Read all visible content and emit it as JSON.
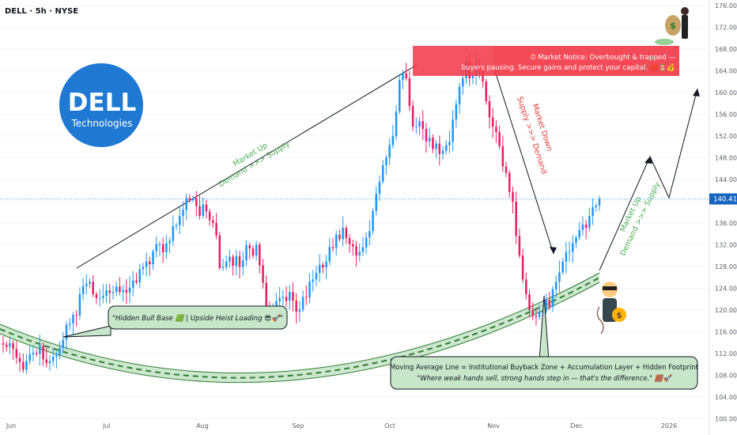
{
  "header": {
    "ticker": "DELL · 5h · NYSE"
  },
  "logo": {
    "line1": "DELL",
    "line2": "Technologies",
    "bg_color": "#1f78d1"
  },
  "price_badge": {
    "value": "140.41",
    "bg_color": "#1565c0"
  },
  "colors": {
    "up": "#2196f3",
    "down": "#e91e63",
    "supply_zone": "#f23645",
    "ma_band": "#a5d6a7",
    "ma_dash": "#2e7d32",
    "label_green": "#4caf50",
    "label_red": "#e53935"
  },
  "annotations": {
    "bull_base": "\"Hidden Bull Base 🟩 | Upside Heist Loading 😎🚀\"",
    "market_notice_1": "⏱ Market Notice: Overbought & trapped —",
    "market_notice_2": "buyers pausing. Secure gains and protect your capital. 🟥⏳💰",
    "ma_line_1": "Moving Average Line = Institutional Buyback Zone + Accumulation Layer + Hidden Footprint",
    "ma_line_2": "\"Where weak hands sell, strong hands step in — that's the difference.\" 🟫🚀",
    "market_up_1_a": "Market Up",
    "market_up_1_b": "Demand >>> Supply",
    "market_down_a": "Market Down",
    "market_down_b": "Supply >>> Demand",
    "market_up_2_a": "Market Up",
    "market_up_2_b": "Demand >>> Supply"
  },
  "chart_data": {
    "type": "candlestick",
    "x_axis": {
      "ticks": [
        "Jun",
        "Jul",
        "Aug",
        "Sep",
        "Oct",
        "Nov",
        "Dec",
        "2026"
      ]
    },
    "y_axis": {
      "range": [
        97,
        177
      ],
      "ticks": [
        100,
        104,
        108,
        112,
        116,
        120,
        124,
        128,
        132,
        136,
        140,
        144,
        148,
        152,
        156,
        160,
        164,
        168,
        172,
        176
      ]
    },
    "last_price": 140.41,
    "closes": [
      113.6,
      113.2,
      113.9,
      112.8,
      111.2,
      110.4,
      109.0,
      110.6,
      111.8,
      112.1,
      111.9,
      113.4,
      110.9,
      110.2,
      110.6,
      111.4,
      111.7,
      113.0,
      114.5,
      117.3,
      117.5,
      119.1,
      119.0,
      122.9,
      124.4,
      124.8,
      125.2,
      122.9,
      122.2,
      122.2,
      122.6,
      123.6,
      123.1,
      123.3,
      124.3,
      123.3,
      123.7,
      123.2,
      124.1,
      125.4,
      125.1,
      127.5,
      127.9,
      128.9,
      128.4,
      130.8,
      132.1,
      132.1,
      130.6,
      132.3,
      132.7,
      135.4,
      135.6,
      137.3,
      138.4,
      140.6,
      140.2,
      140.5,
      139.1,
      137.3,
      139.4,
      138.1,
      136.5,
      136.0,
      133.7,
      127.7,
      127.9,
      128.9,
      129.8,
      128.1,
      129.9,
      127.9,
      129.1,
      131.9,
      131.3,
      130.0,
      132.0,
      128.2,
      125.0,
      120.2,
      118.6,
      120.6,
      121.6,
      122.2,
      122.4,
      121.7,
      123.3,
      121.7,
      119.7,
      120.1,
      122.4,
      122.3,
      125.2,
      125.6,
      126.8,
      128.3,
      127.8,
      128.9,
      131.6,
      131.4,
      133.8,
      133.0,
      135.1,
      133.2,
      132.1,
      131.7,
      130.0,
      130.7,
      131.5,
      133.3,
      134.5,
      138.2,
      141.4,
      143.6,
      146.6,
      148.0,
      150.3,
      152.0,
      156.5,
      162.3,
      163.5,
      162.6,
      157.5,
      153.7,
      153.7,
      154.7,
      153.3,
      151.0,
      151.7,
      149.6,
      150.6,
      148.7,
      149.3,
      150.3,
      150.9,
      155.0,
      157.8,
      161.1,
      162.6,
      165.6,
      162.6,
      163.1,
      165.1,
      163.9,
      162.0,
      158.4,
      155.4,
      153.7,
      152.7,
      150.1,
      146.4,
      145.2,
      141.7,
      139.9,
      133.6,
      130.0,
      125.6,
      122.9,
      120.0,
      118.9,
      118.7,
      119.7,
      119.7,
      121.8,
      120.6,
      123.8,
      125.2,
      126.9,
      128.9,
      130.6,
      130.7,
      132.3,
      133.3,
      134.7,
      135.7,
      135.1,
      137.3,
      138.9,
      139.2,
      140.4
    ]
  }
}
